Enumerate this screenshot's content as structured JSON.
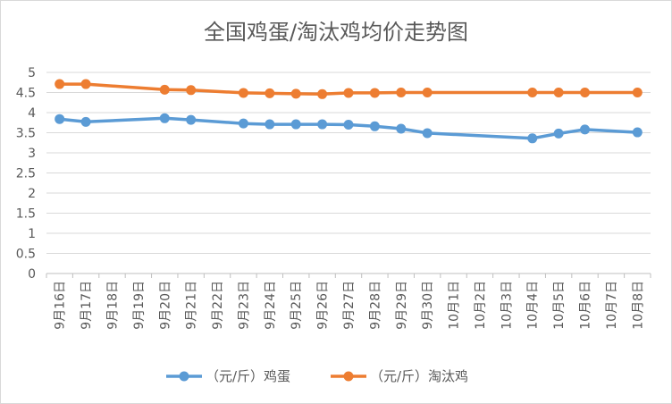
{
  "chart_data": {
    "type": "line",
    "title": "全国鸡蛋/淘汰鸡均价走势图",
    "categories": [
      "9月16日",
      "9月17日",
      "9月18日",
      "9月19日",
      "9月20日",
      "9月21日",
      "9月22日",
      "9月23日",
      "9月24日",
      "9月25日",
      "9月26日",
      "9月27日",
      "9月28日",
      "9月29日",
      "9月30日",
      "10月1日",
      "10月2日",
      "10月3日",
      "10月4日",
      "10月5日",
      "10月6日",
      "10月7日",
      "10月8日"
    ],
    "ylim": [
      0,
      5
    ],
    "yticks": [
      "0",
      "0.5",
      "1",
      "1.5",
      "2",
      "2.5",
      "3",
      "3.5",
      "4",
      "4.5",
      "5"
    ],
    "grid": true,
    "legend_position": "bottom",
    "series": [
      {
        "name": "（元/斤）鸡蛋",
        "color": "#5B9BD5",
        "values": [
          3.84,
          3.77,
          null,
          null,
          3.86,
          3.82,
          null,
          3.73,
          3.71,
          3.71,
          3.71,
          3.7,
          3.66,
          3.6,
          3.49,
          null,
          null,
          null,
          3.36,
          3.48,
          3.58,
          null,
          3.51
        ]
      },
      {
        "name": "（元/斤）淘汰鸡",
        "color": "#ED7D31",
        "values": [
          4.71,
          4.71,
          null,
          null,
          4.57,
          4.56,
          null,
          4.49,
          4.48,
          4.47,
          4.46,
          4.49,
          4.49,
          4.5,
          4.5,
          null,
          null,
          null,
          4.5,
          4.5,
          4.5,
          null,
          4.5
        ]
      }
    ]
  }
}
